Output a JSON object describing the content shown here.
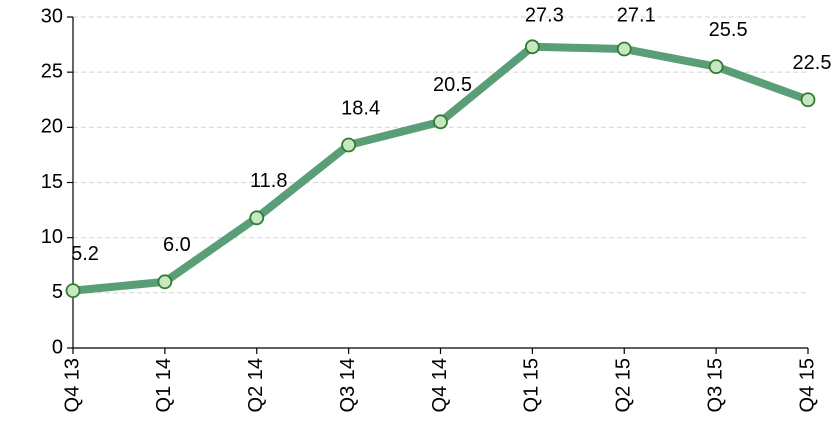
{
  "chart_data": {
    "type": "line",
    "categories": [
      "Q4 13",
      "Q1 14",
      "Q2 14",
      "Q3 14",
      "Q4 14",
      "Q1 15",
      "Q2 15",
      "Q3 15",
      "Q4 15"
    ],
    "values": [
      5.2,
      6.0,
      11.8,
      18.4,
      20.5,
      27.3,
      27.1,
      25.5,
      22.5
    ],
    "value_labels": [
      "5.2",
      "6.0",
      "11.8",
      "18.4",
      "20.5",
      "27.3",
      "27.1",
      "25.5",
      "22.5"
    ],
    "color": "#5a9e78",
    "marker_fill": "#c8e6c0",
    "marker_edge": "#2e7d32",
    "ylim": [
      0,
      30
    ],
    "yticks": [
      0,
      5,
      10,
      15,
      20,
      25,
      30
    ],
    "grid": true
  }
}
